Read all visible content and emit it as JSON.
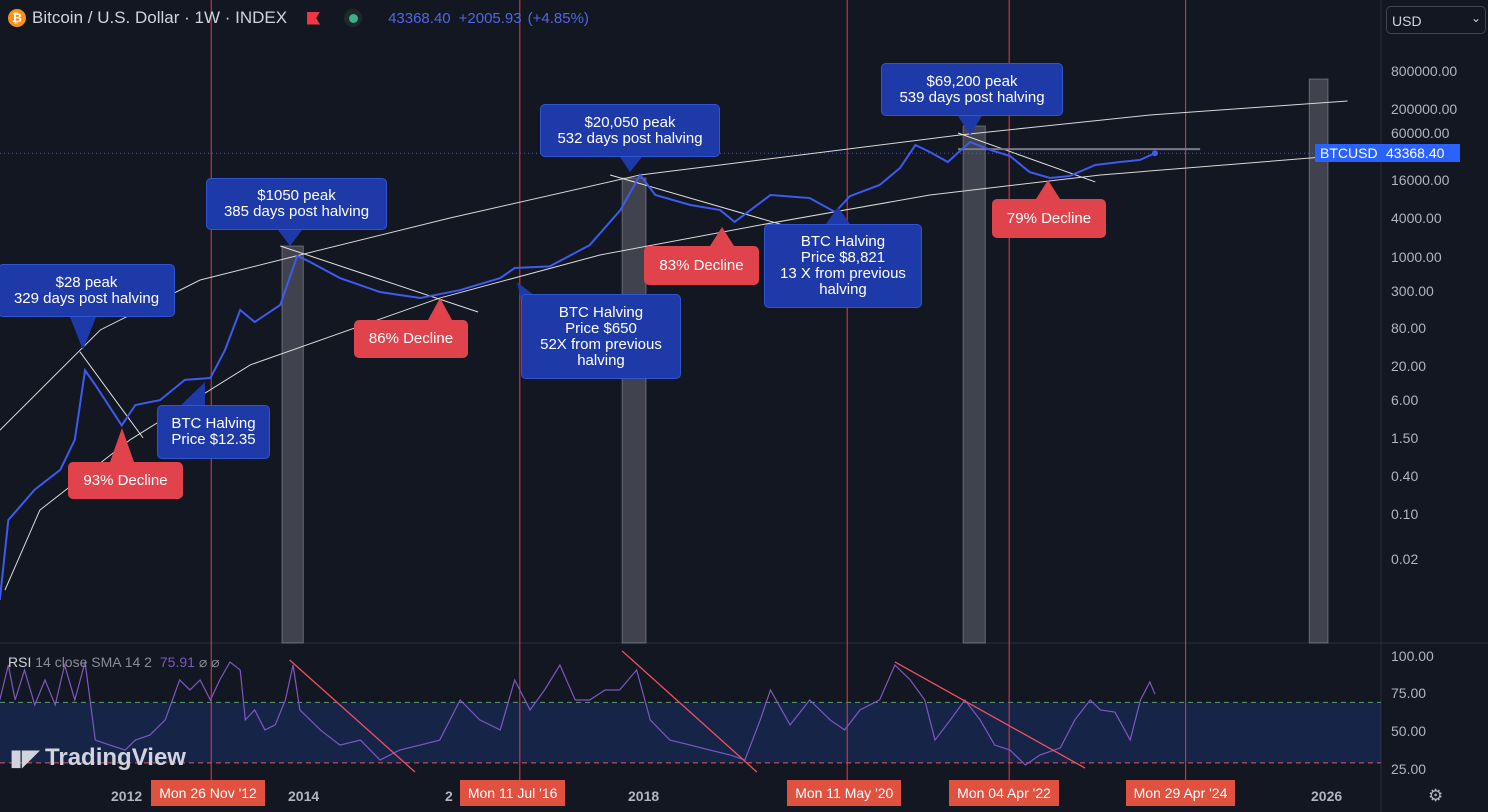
{
  "header": {
    "symbol": "Bitcoin / U.S. Dollar · 1W · INDEX",
    "coin_glyph": "₿",
    "last": "43368.40",
    "change": "+2005.93",
    "change_pct": "(+4.85%)"
  },
  "currency": {
    "value": "USD",
    "chevron": "⌄"
  },
  "price_tag": {
    "symbol": "BTCUSD",
    "value": "43368.40"
  },
  "rsi": {
    "name": "RSI",
    "params": "14 close SMA 14 2",
    "value": "75.91",
    "icons": "⌀ ⌀",
    "axis": [
      "100.00",
      "75.00",
      "50.00",
      "25.00"
    ]
  },
  "watermark": "TradingView",
  "colors": {
    "bg": "#131722",
    "price": "#3d5af1",
    "halving": "#f23645",
    "rsi": "#7e57c2",
    "callout_blue": "#1e3aa8",
    "callout_red": "#e0434b"
  },
  "chart_data": {
    "type": "line",
    "title": "Bitcoin / U.S. Dollar · 1W · INDEX",
    "yscale": "log",
    "y_ticks": [
      "800000.00",
      "200000.00",
      "60000.00",
      "16000.00",
      "4000.00",
      "1000.00",
      "300.00",
      "80.00",
      "20.00",
      "6.00",
      "1.50",
      "0.40",
      "0.10",
      "0.02"
    ],
    "x_ticks": [
      "2012",
      "2014",
      "2",
      "2018",
      "2026"
    ],
    "price": [
      [
        2010.42,
        0.0048
      ],
      [
        2010.52,
        0.084
      ],
      [
        2010.83,
        0.25
      ],
      [
        2011.13,
        0.51
      ],
      [
        2011.3,
        1.5
      ],
      [
        2011.42,
        18
      ],
      [
        2011.54,
        10.7
      ],
      [
        2011.85,
        2.5
      ],
      [
        2012.01,
        5.2
      ],
      [
        2012.3,
        6.2
      ],
      [
        2012.59,
        12.8
      ],
      [
        2012.89,
        13.7
      ],
      [
        2013.06,
        37
      ],
      [
        2013.24,
        157
      ],
      [
        2013.41,
        102
      ],
      [
        2013.71,
        188
      ],
      [
        2013.91,
        1100
      ],
      [
        2014.06,
        877
      ],
      [
        2014.41,
        494
      ],
      [
        2014.88,
        299
      ],
      [
        2015.35,
        241
      ],
      [
        2015.82,
        321
      ],
      [
        2016.29,
        494
      ],
      [
        2016.46,
        708
      ],
      [
        2016.87,
        750
      ],
      [
        2017.34,
        1610
      ],
      [
        2017.7,
        5660
      ],
      [
        2017.93,
        19900
      ],
      [
        2018.11,
        9700
      ],
      [
        2018.52,
        6780
      ],
      [
        2018.87,
        5660
      ],
      [
        2019.04,
        3690
      ],
      [
        2019.46,
        9700
      ],
      [
        2019.92,
        8700
      ],
      [
        2020.22,
        5250
      ],
      [
        2020.39,
        9300
      ],
      [
        2020.74,
        13900
      ],
      [
        2020.98,
        25600
      ],
      [
        2021.16,
        58300
      ],
      [
        2021.33,
        45400
      ],
      [
        2021.54,
        31700
      ],
      [
        2021.8,
        65000
      ],
      [
        2022.04,
        48800
      ],
      [
        2022.27,
        39300
      ],
      [
        2022.5,
        22100
      ],
      [
        2022.74,
        17900
      ],
      [
        2022.97,
        19200
      ],
      [
        2023.27,
        28500
      ],
      [
        2023.56,
        31700
      ],
      [
        2023.79,
        34000
      ],
      [
        2023.97,
        43368
      ]
    ],
    "current_price": 43368.4,
    "upper_curve": [
      [
        2010.42,
        2.1
      ],
      [
        2011.6,
        77
      ],
      [
        2012.77,
        460
      ],
      [
        2013.94,
        1130
      ],
      [
        2015.7,
        4260
      ],
      [
        2017.93,
        19900
      ],
      [
        2019.81,
        40700
      ],
      [
        2021.68,
        83600
      ],
      [
        2023.91,
        171000
      ],
      [
        2026.23,
        283000
      ]
    ],
    "lower_curve": [
      [
        2010.48,
        0.0068
      ],
      [
        2010.89,
        0.12
      ],
      [
        2011.95,
        1.5
      ],
      [
        2013.36,
        22
      ],
      [
        2015.58,
        241
      ],
      [
        2017.46,
        1130
      ],
      [
        2019.34,
        3310
      ],
      [
        2021.33,
        9700
      ],
      [
        2023.33,
        19900
      ],
      [
        2026.23,
        40700
      ]
    ],
    "decline_lines": [
      [
        [
          2011.36,
          35
        ],
        [
          2012.1,
          1.6
        ]
      ],
      [
        [
          2013.71,
          1560
        ],
        [
          2016.03,
          146
        ]
      ],
      [
        [
          2017.58,
          19900
        ],
        [
          2019.81,
          2770
        ]
      ],
      [
        [
          2021.66,
          89800
        ],
        [
          2023.27,
          15500
        ]
      ]
    ],
    "ath_level": {
      "price": 50400,
      "from": 2021.66,
      "to": 2024.5
    },
    "peak_zones": [
      [
        2013.73,
        2013.98
      ],
      [
        2017.72,
        2018.0
      ],
      [
        2021.72,
        2021.98
      ],
      [
        2025.78,
        2026.0
      ]
    ],
    "halvings": [
      {
        "year": 2012.9,
        "label": "Mon 26 Nov '12"
      },
      {
        "year": 2016.52,
        "label": "Mon 11 Jul '16"
      },
      {
        "year": 2020.36,
        "label": "Mon 11 May '20"
      },
      {
        "year": 2022.26,
        "label": "Mon 04 Apr '22"
      },
      {
        "year": 2024.33,
        "label": "Mon 29 Apr '24"
      }
    ],
    "annotations": [
      {
        "kind": "blue",
        "text": "$28 peak\n329 days post halving"
      },
      {
        "kind": "blue",
        "text": "BTC Halving\nPrice $12.35"
      },
      {
        "kind": "red",
        "text": "93% Decline"
      },
      {
        "kind": "blue",
        "text": "$1050 peak\n385 days post halving"
      },
      {
        "kind": "red",
        "text": "86% Decline"
      },
      {
        "kind": "blue",
        "text": "BTC Halving\nPrice $650\n52X from previous\nhalving"
      },
      {
        "kind": "blue",
        "text": "$20,050 peak\n532 days post halving"
      },
      {
        "kind": "red",
        "text": "83% Decline"
      },
      {
        "kind": "blue",
        "text": "BTC Halving\nPrice $8,821\n13 X from previous\nhalving"
      },
      {
        "kind": "blue",
        "text": "$69,200 peak\n539 days post halving"
      },
      {
        "kind": "red",
        "text": "79% Decline"
      }
    ],
    "rsi_series": [
      [
        2010.42,
        71.6
      ],
      [
        2010.52,
        94.7
      ],
      [
        2010.6,
        71.6
      ],
      [
        2010.71,
        91.4
      ],
      [
        2010.83,
        68.3
      ],
      [
        2010.95,
        84.8
      ],
      [
        2011.07,
        68.3
      ],
      [
        2011.18,
        94.7
      ],
      [
        2011.3,
        71.6
      ],
      [
        2011.42,
        96.7
      ],
      [
        2011.54,
        45.1
      ],
      [
        2011.71,
        41.8
      ],
      [
        2011.89,
        38.5
      ],
      [
        2012.01,
        45.1
      ],
      [
        2012.18,
        48.4
      ],
      [
        2012.36,
        58.4
      ],
      [
        2012.53,
        84.8
      ],
      [
        2012.65,
        78.2
      ],
      [
        2012.77,
        84.8
      ],
      [
        2012.89,
        71.6
      ],
      [
        2013.0,
        84.8
      ],
      [
        2013.12,
        96.7
      ],
      [
        2013.24,
        91.4
      ],
      [
        2013.3,
        58.4
      ],
      [
        2013.41,
        65
      ],
      [
        2013.53,
        51.8
      ],
      [
        2013.65,
        55.1
      ],
      [
        2013.77,
        71.6
      ],
      [
        2013.86,
        94.7
      ],
      [
        2013.94,
        65
      ],
      [
        2014.18,
        51.8
      ],
      [
        2014.41,
        41.8
      ],
      [
        2014.65,
        45.1
      ],
      [
        2014.88,
        31.9
      ],
      [
        2015.11,
        38.5
      ],
      [
        2015.35,
        41.8
      ],
      [
        2015.58,
        45.1
      ],
      [
        2015.82,
        71.6
      ],
      [
        2016.05,
        58.4
      ],
      [
        2016.29,
        51.8
      ],
      [
        2016.46,
        84.8
      ],
      [
        2016.64,
        65
      ],
      [
        2016.81,
        78.2
      ],
      [
        2016.99,
        94.7
      ],
      [
        2017.17,
        71.6
      ],
      [
        2017.34,
        71.6
      ],
      [
        2017.52,
        78.2
      ],
      [
        2017.69,
        78.2
      ],
      [
        2017.89,
        91.4
      ],
      [
        2018.05,
        58.4
      ],
      [
        2018.28,
        45.1
      ],
      [
        2018.52,
        41.8
      ],
      [
        2018.75,
        38.5
      ],
      [
        2018.99,
        35.2
      ],
      [
        2019.16,
        31.9
      ],
      [
        2019.34,
        58.4
      ],
      [
        2019.46,
        78.2
      ],
      [
        2019.69,
        55.1
      ],
      [
        2019.92,
        71.6
      ],
      [
        2020.16,
        58.4
      ],
      [
        2020.33,
        51.8
      ],
      [
        2020.51,
        65
      ],
      [
        2020.74,
        71.6
      ],
      [
        2020.92,
        94.7
      ],
      [
        2021.1,
        84.8
      ],
      [
        2021.27,
        71.6
      ],
      [
        2021.39,
        45.1
      ],
      [
        2021.57,
        58.4
      ],
      [
        2021.74,
        71.6
      ],
      [
        2021.92,
        58.4
      ],
      [
        2022.09,
        41.8
      ],
      [
        2022.27,
        38.5
      ],
      [
        2022.45,
        28.6
      ],
      [
        2022.62,
        35.2
      ],
      [
        2022.86,
        39.9
      ],
      [
        2023.03,
        58.4
      ],
      [
        2023.21,
        71.6
      ],
      [
        2023.33,
        65
      ],
      [
        2023.5,
        63.6
      ],
      [
        2023.68,
        45.1
      ],
      [
        2023.8,
        71.6
      ],
      [
        2023.91,
        83.5
      ],
      [
        2023.97,
        75.5
      ]
    ],
    "rsi_levels": {
      "upper": 70,
      "lower": 30
    },
    "rsi_trendlines": [
      [
        [
          2013.82,
          98
        ],
        [
          2015.29,
          24
        ]
      ],
      [
        [
          2017.72,
          104
        ],
        [
          2019.3,
          24
        ]
      ],
      [
        [
          2020.92,
          96.7
        ],
        [
          2023.15,
          26.6
        ]
      ]
    ]
  }
}
